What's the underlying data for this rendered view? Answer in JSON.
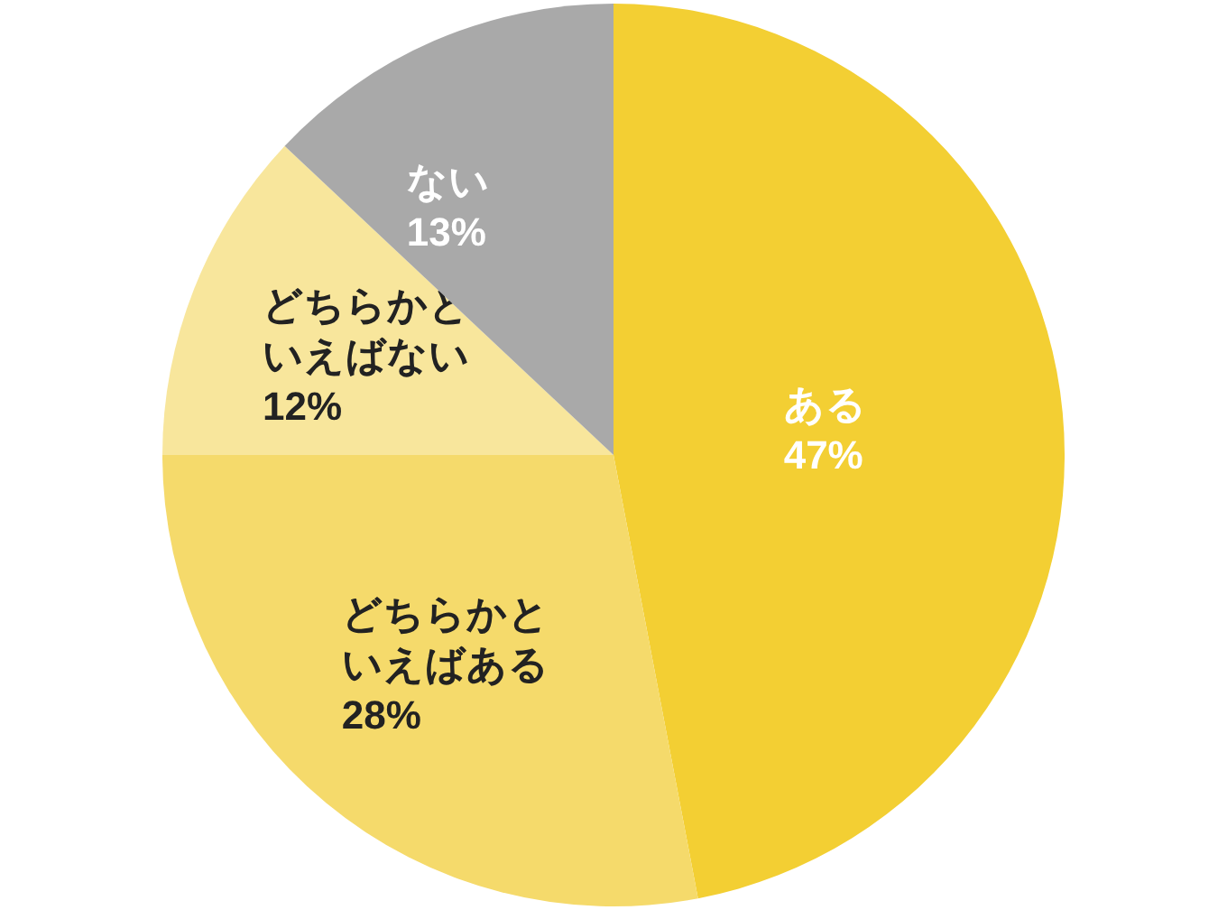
{
  "chart_data": {
    "type": "pie",
    "categories": [
      "ある",
      "どちらかといえばある",
      "どちらかといえばない",
      "ない"
    ],
    "values": [
      47,
      28,
      12,
      13
    ],
    "value_labels": [
      "47%",
      "28%",
      "12%",
      "13%"
    ],
    "colors": [
      "#f3cf33",
      "#f5da6b",
      "#f8e69c",
      "#a9a9a9"
    ]
  }
}
